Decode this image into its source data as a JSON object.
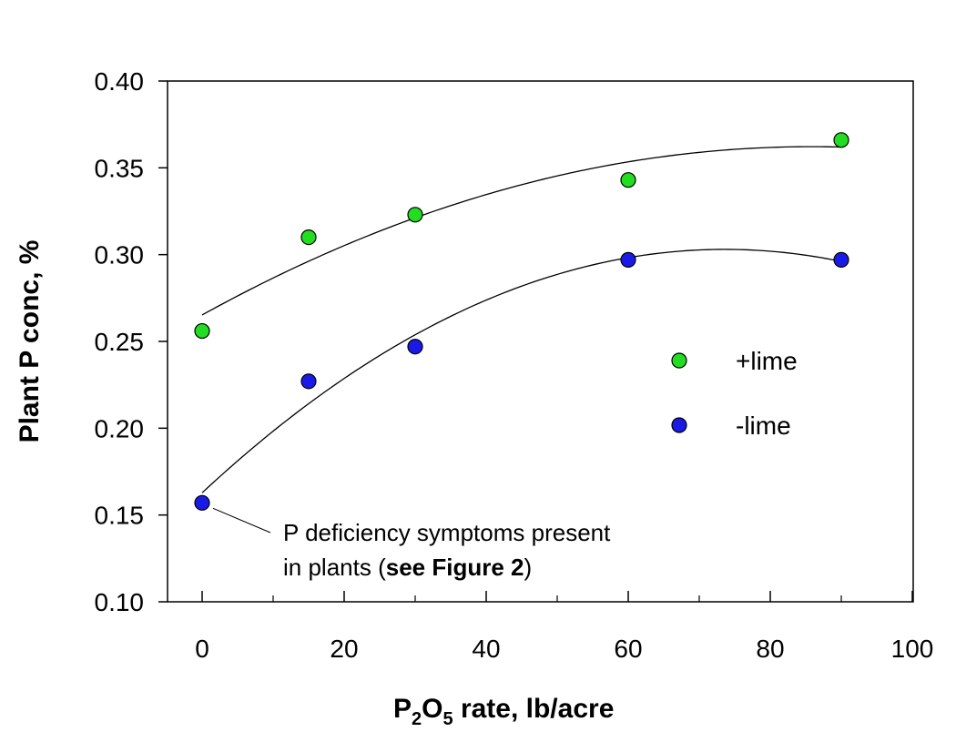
{
  "chart_data": {
    "type": "scatter",
    "xlabel": {
      "main": "P",
      "sub1": "2",
      "mid": "O",
      "sub2": "5",
      "rest": " rate, lb/acre"
    },
    "ylabel": "Plant P conc, %",
    "xlim": [
      0,
      100
    ],
    "ylim": [
      0.1,
      0.4
    ],
    "x_ticks": [
      0,
      20,
      40,
      60,
      80,
      100
    ],
    "x_minor_ticks": [
      10,
      30,
      50,
      70,
      90
    ],
    "y_ticks": [
      0.1,
      0.15,
      0.2,
      0.25,
      0.3,
      0.35,
      0.4
    ],
    "y_tick_labels": [
      "0.10",
      "0.15",
      "0.20",
      "0.25",
      "0.30",
      "0.35",
      "0.40"
    ],
    "grid": false,
    "legend_position": "right",
    "series": [
      {
        "name": "+lime",
        "color": "#22dd22",
        "x": [
          0,
          15,
          30,
          60,
          90
        ],
        "y": [
          0.256,
          0.31,
          0.323,
          0.343,
          0.366
        ],
        "fit": "quadratic"
      },
      {
        "name": "-lime",
        "color": "#1a1ae6",
        "x": [
          0,
          15,
          30,
          60,
          90
        ],
        "y": [
          0.157,
          0.227,
          0.247,
          0.297,
          0.297
        ],
        "fit": "quadratic"
      }
    ],
    "annotation": {
      "line1": "P deficiency symptoms present",
      "line2_prefix": "in plants (",
      "line2_bold": "see Figure 2",
      "line2_suffix": ")",
      "points_to": {
        "series": "-lime",
        "x": 0,
        "y": 0.157
      }
    }
  }
}
